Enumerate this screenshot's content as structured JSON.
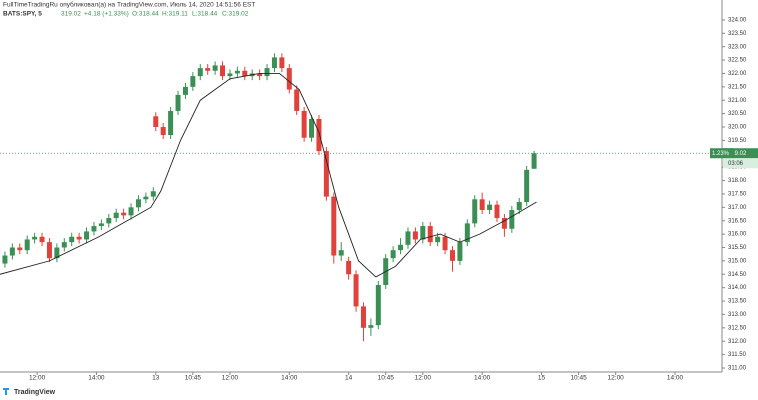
{
  "chart_data": {
    "type": "candlestick",
    "header": {
      "publisher": "FullTimeTradingRu опубликовал(а) на TradingView.com, Июль 14, 2020 14:51:56 EST",
      "symbol": "BATS:SPY, 5",
      "change": "+4.18 (+1.33%)",
      "o": "O:318.44",
      "h": "H:319.11",
      "l": "L:318.44",
      "c": "C:319.02"
    },
    "badge": "1.23%",
    "countdown": "03:06",
    "footer": "TradingView",
    "up_color": "#3b8f55",
    "down_color": "#e0413b",
    "x": [
      -13,
      -10,
      -7,
      -4,
      -1,
      2,
      5,
      8,
      11,
      14,
      17,
      20,
      23,
      26,
      29,
      32,
      35,
      38,
      41,
      44,
      47,
      48,
      51,
      54,
      57,
      60,
      63,
      66,
      69,
      72,
      75,
      78,
      81,
      84,
      87,
      90,
      93,
      96,
      99,
      102,
      105,
      108,
      111,
      114,
      117,
      120,
      123,
      126,
      129,
      132,
      135,
      138,
      141,
      144,
      147,
      150,
      153,
      156,
      159,
      162,
      165,
      168,
      171,
      174,
      177,
      180,
      183,
      186,
      189,
      192,
      195,
      198,
      201
    ],
    "open": [
      314.9,
      315.2,
      315.5,
      315.4,
      315.8,
      315.9,
      315.7,
      315.1,
      315.5,
      315.7,
      315.9,
      315.8,
      316.1,
      316.3,
      316.4,
      316.6,
      316.8,
      316.7,
      317.0,
      317.3,
      317.4,
      320.4,
      320.0,
      319.7,
      320.6,
      321.2,
      321.5,
      321.9,
      322.2,
      322.1,
      322.3,
      321.9,
      322.0,
      322.1,
      321.9,
      322.0,
      321.9,
      322.2,
      322.6,
      322.2,
      321.4,
      320.6,
      319.6,
      320.3,
      319.1,
      317.4,
      315.2,
      315.0,
      314.5,
      313.3,
      312.5,
      312.6,
      314.1,
      315.1,
      315.4,
      315.6,
      316.1,
      315.8,
      316.3,
      315.7,
      315.9,
      315.4,
      315.0,
      315.7,
      316.4,
      317.3,
      316.9,
      317.1,
      316.6,
      316.2,
      316.9,
      317.2,
      318.44
    ],
    "high": [
      315.35,
      315.65,
      315.65,
      315.95,
      316.05,
      316.05,
      315.85,
      315.65,
      315.85,
      316.05,
      316.05,
      316.25,
      316.45,
      316.55,
      316.75,
      316.95,
      316.95,
      317.15,
      317.45,
      317.55,
      317.75,
      320.55,
      320.15,
      320.75,
      321.35,
      321.65,
      322.05,
      322.35,
      322.35,
      322.45,
      322.45,
      322.15,
      322.25,
      322.25,
      322.15,
      322.15,
      322.35,
      322.75,
      322.75,
      322.35,
      321.55,
      320.75,
      320.45,
      320.45,
      319.25,
      317.55,
      315.7,
      315.15,
      314.65,
      313.45,
      312.85,
      314.25,
      315.25,
      315.55,
      315.85,
      316.25,
      316.25,
      316.45,
      316.45,
      316.05,
      316.05,
      315.55,
      315.85,
      316.55,
      317.45,
      317.55,
      317.25,
      317.25,
      316.75,
      317.05,
      317.35,
      318.55,
      319.11
    ],
    "low": [
      314.75,
      315.05,
      315.25,
      315.25,
      315.65,
      315.55,
      314.95,
      314.95,
      315.35,
      315.55,
      315.65,
      315.65,
      315.95,
      316.15,
      316.25,
      316.45,
      316.55,
      316.55,
      316.85,
      317.15,
      317.25,
      319.85,
      319.55,
      319.55,
      320.45,
      321.05,
      321.35,
      321.75,
      321.95,
      321.95,
      321.75,
      321.75,
      321.85,
      321.75,
      321.75,
      321.75,
      321.75,
      322.05,
      322.05,
      321.25,
      320.45,
      319.45,
      319.45,
      318.95,
      317.25,
      314.9,
      315.0,
      314.3,
      313.1,
      312.0,
      312.2,
      312.45,
      313.95,
      314.95,
      315.25,
      315.45,
      315.65,
      315.65,
      315.55,
      315.55,
      315.25,
      314.6,
      314.85,
      315.55,
      316.25,
      316.75,
      316.75,
      316.45,
      315.9,
      316.05,
      316.75,
      317.05,
      318.44
    ],
    "close": [
      315.2,
      315.5,
      315.4,
      315.8,
      315.9,
      315.7,
      315.1,
      315.5,
      315.7,
      315.9,
      315.8,
      316.1,
      316.3,
      316.4,
      316.6,
      316.8,
      316.7,
      317.0,
      317.3,
      317.4,
      317.6,
      320.0,
      319.7,
      320.6,
      321.2,
      321.5,
      321.9,
      322.2,
      322.1,
      322.3,
      321.9,
      322.0,
      322.1,
      321.9,
      322.0,
      321.9,
      322.2,
      322.6,
      322.2,
      321.4,
      320.6,
      319.6,
      320.3,
      319.1,
      317.4,
      315.2,
      315.4,
      314.5,
      313.3,
      312.5,
      312.6,
      314.1,
      315.1,
      315.4,
      315.6,
      316.1,
      315.8,
      316.3,
      315.7,
      315.9,
      315.4,
      315.0,
      315.7,
      316.4,
      317.3,
      316.9,
      317.1,
      316.6,
      316.2,
      316.9,
      317.2,
      318.4,
      319.02
    ],
    "ma": {
      "color": "#222222",
      "x": [
        -15,
        5,
        25,
        46,
        50,
        58,
        66,
        78,
        90,
        98,
        106,
        114,
        122,
        130,
        137,
        145,
        155,
        163,
        171,
        179,
        191,
        202
      ],
      "values": [
        314.5,
        315.0,
        315.9,
        317.0,
        317.6,
        319.5,
        321.0,
        321.8,
        322.0,
        322.0,
        321.4,
        319.8,
        317.0,
        315.0,
        314.4,
        314.8,
        315.8,
        316.0,
        315.7,
        316.0,
        316.6,
        317.2
      ]
    },
    "xlim": [
      -15,
      277
    ],
    "xticks": [
      {
        "value": 0,
        "label": "12:00"
      },
      {
        "value": 24,
        "label": "14:00"
      },
      {
        "value": 48,
        "label": "13"
      },
      {
        "value": 63,
        "label": "10:45"
      },
      {
        "value": 78,
        "label": "12:00"
      },
      {
        "value": 102,
        "label": "14:00"
      },
      {
        "value": 126,
        "label": "14"
      },
      {
        "value": 141,
        "label": "10:45"
      },
      {
        "value": 156,
        "label": "12:00"
      },
      {
        "value": 180,
        "label": "14:00"
      },
      {
        "value": 204,
        "label": "15"
      },
      {
        "value": 219,
        "label": "10:45"
      },
      {
        "value": 234,
        "label": "12:00"
      },
      {
        "value": 258,
        "label": "14:00"
      }
    ],
    "ylim": [
      310.85,
      324.37
    ],
    "yticks": [
      {
        "value": 311,
        "label": "311.00"
      },
      {
        "value": 311.5,
        "label": "311.50"
      },
      {
        "value": 312,
        "label": "312.00"
      },
      {
        "value": 312.5,
        "label": "312.50"
      },
      {
        "value": 313,
        "label": "313.00"
      },
      {
        "value": 313.5,
        "label": "313.50"
      },
      {
        "value": 314,
        "label": "314.00"
      },
      {
        "value": 314.5,
        "label": "314.50"
      },
      {
        "value": 315,
        "label": "315.00"
      },
      {
        "value": 315.5,
        "label": "315.50"
      },
      {
        "value": 316,
        "label": "316.00"
      },
      {
        "value": 316.5,
        "label": "316.50"
      },
      {
        "value": 317,
        "label": "317.00"
      },
      {
        "value": 317.5,
        "label": "317.50"
      },
      {
        "value": 318,
        "label": "318.00"
      },
      {
        "value": 318.5,
        "label": "318.50"
      },
      {
        "value": 319,
        "label": "319.00"
      },
      {
        "value": 319.5,
        "label": "319.50"
      },
      {
        "value": 320,
        "label": "320.00"
      },
      {
        "value": 320.5,
        "label": "320.50"
      },
      {
        "value": 321,
        "label": "321.00"
      },
      {
        "value": 321.5,
        "label": "321.50"
      },
      {
        "value": 322,
        "label": "322.00"
      },
      {
        "value": 322.5,
        "label": "322.50"
      },
      {
        "value": 323,
        "label": "323.00"
      },
      {
        "value": 323.5,
        "label": "323.50"
      },
      {
        "value": 324,
        "label": "324.00"
      }
    ],
    "grid": false
  }
}
